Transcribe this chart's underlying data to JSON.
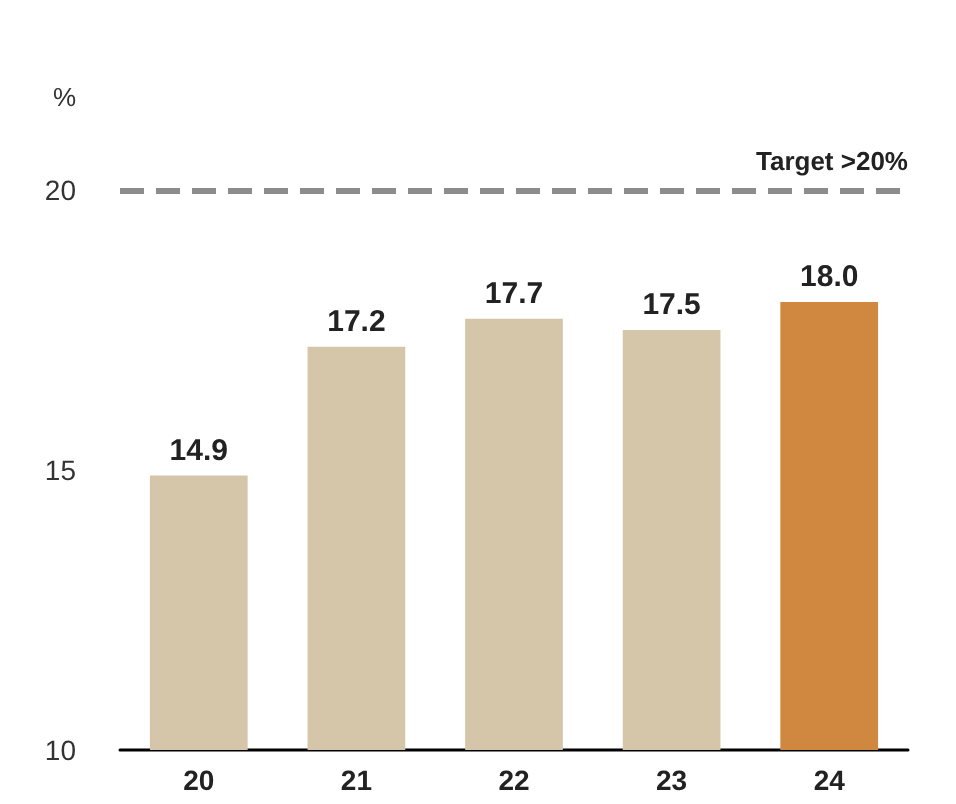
{
  "chart_data": {
    "type": "bar",
    "ylabel": "%",
    "categories": [
      "20",
      "21",
      "22",
      "23",
      "24"
    ],
    "values": [
      14.9,
      17.2,
      17.7,
      17.5,
      18.0
    ],
    "colors": [
      "#d6c6a9",
      "#d6c6a9",
      "#d6c6a9",
      "#d6c6a9",
      "#d08841"
    ],
    "value_labels": [
      "14.9",
      "17.2",
      "17.7",
      "17.5",
      "18.0"
    ],
    "ylim": [
      10,
      20
    ],
    "yticks": [
      10,
      15,
      20
    ],
    "grid": false,
    "ref_lines": [
      {
        "axis": "y",
        "value": 20,
        "label": "Target >20%",
        "color": "#8c8c8c",
        "line_style": "dashed"
      }
    ]
  }
}
